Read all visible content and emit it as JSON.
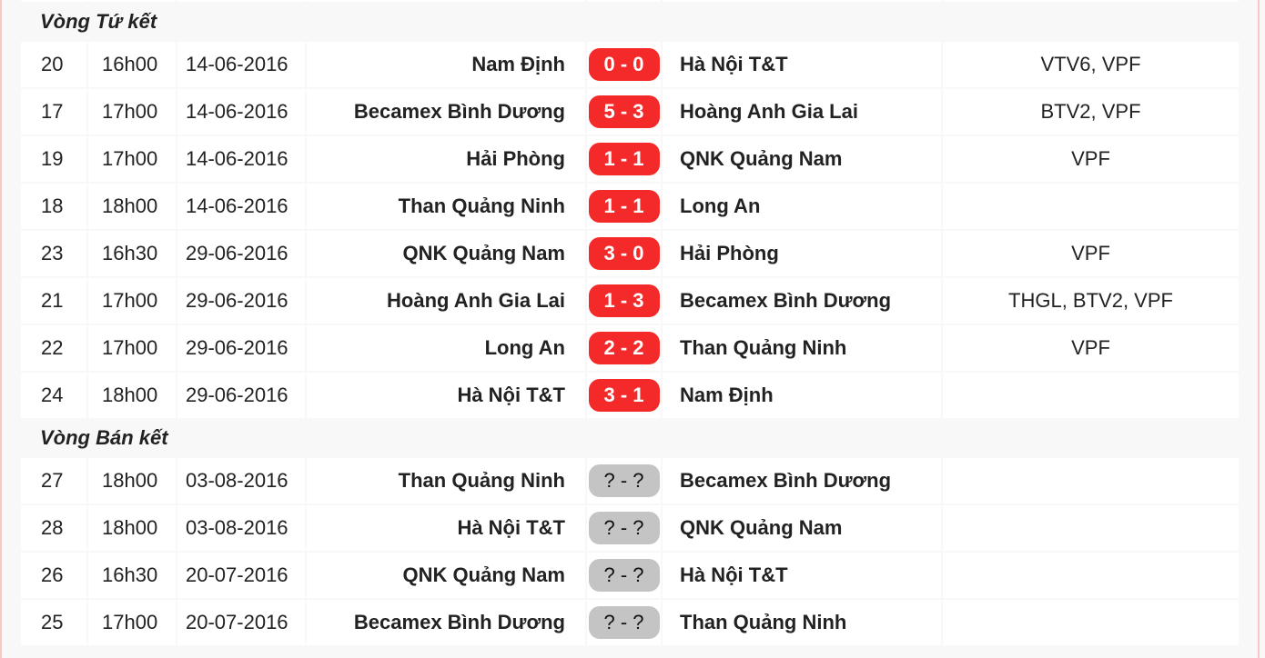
{
  "sections": [
    {
      "title": "Vòng Tứ kết",
      "matches": [
        {
          "no": "20",
          "time": "16h00",
          "date": "14-06-2016",
          "home": "Nam Định",
          "score": "0 - 0",
          "away": "Hà Nội T&T",
          "tv": "VTV6, VPF",
          "status": "played"
        },
        {
          "no": "17",
          "time": "17h00",
          "date": "14-06-2016",
          "home": "Becamex Bình Dương",
          "score": "5 - 3",
          "away": "Hoàng Anh Gia Lai",
          "tv": "BTV2, VPF",
          "status": "played"
        },
        {
          "no": "19",
          "time": "17h00",
          "date": "14-06-2016",
          "home": "Hải Phòng",
          "score": "1 - 1",
          "away": "QNK Quảng Nam",
          "tv": "VPF",
          "status": "played"
        },
        {
          "no": "18",
          "time": "18h00",
          "date": "14-06-2016",
          "home": "Than Quảng Ninh",
          "score": "1 - 1",
          "away": "Long An",
          "tv": "",
          "status": "played"
        },
        {
          "no": "23",
          "time": "16h30",
          "date": "29-06-2016",
          "home": "QNK Quảng Nam",
          "score": "3 - 0",
          "away": "Hải Phòng",
          "tv": "VPF",
          "status": "played"
        },
        {
          "no": "21",
          "time": "17h00",
          "date": "29-06-2016",
          "home": "Hoàng Anh Gia Lai",
          "score": "1 - 3",
          "away": "Becamex Bình Dương",
          "tv": "THGL, BTV2, VPF",
          "status": "played"
        },
        {
          "no": "22",
          "time": "17h00",
          "date": "29-06-2016",
          "home": "Long An",
          "score": "2 - 2",
          "away": "Than Quảng Ninh",
          "tv": "VPF",
          "status": "played"
        },
        {
          "no": "24",
          "time": "18h00",
          "date": "29-06-2016",
          "home": "Hà Nội T&T",
          "score": "3 - 1",
          "away": "Nam Định",
          "tv": "",
          "status": "played"
        }
      ]
    },
    {
      "title": "Vòng Bán kết",
      "matches": [
        {
          "no": "27",
          "time": "18h00",
          "date": "03-08-2016",
          "home": "Than Quảng Ninh",
          "score": "? - ?",
          "away": "Becamex Bình Dương",
          "tv": "",
          "status": "pending"
        },
        {
          "no": "28",
          "time": "18h00",
          "date": "03-08-2016",
          "home": "Hà Nội T&T",
          "score": "? - ?",
          "away": "QNK Quảng Nam",
          "tv": "",
          "status": "pending"
        },
        {
          "no": "26",
          "time": "16h30",
          "date": "20-07-2016",
          "home": "QNK Quảng Nam",
          "score": "? - ?",
          "away": "Hà Nội T&T",
          "tv": "",
          "status": "pending"
        },
        {
          "no": "25",
          "time": "17h00",
          "date": "20-07-2016",
          "home": "Becamex Bình Dương",
          "score": "? - ?",
          "away": "Than Quảng Ninh",
          "tv": "",
          "status": "pending"
        }
      ]
    }
  ],
  "colors": {
    "played_badge": "#f42a2a",
    "pending_badge": "#c4c4c4"
  }
}
